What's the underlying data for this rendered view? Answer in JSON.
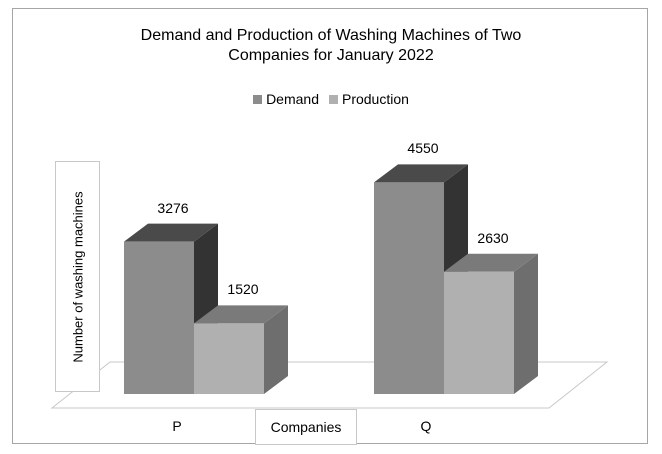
{
  "chart_data": {
    "type": "bar",
    "title_lines": [
      "Demand and Production of Washing Machines of Two",
      "Companies for January 2022"
    ],
    "categories": [
      "P",
      "Q"
    ],
    "series": [
      {
        "name": "Demand",
        "values": [
          3276,
          4550
        ]
      },
      {
        "name": "Production",
        "values": [
          1520,
          2630
        ]
      }
    ],
    "xlabel": "Companies",
    "ylabel": "Number of washing machines",
    "ylim": [
      0,
      5000
    ],
    "legend_position": "top-center",
    "grid": false,
    "colors": {
      "demand_front": "#8c8c8c",
      "demand_top": "#4a4a4a",
      "demand_side": "#333333",
      "production_front": "#b0b0b0",
      "production_top": "#7a7a7a",
      "production_side": "#6e6e6e",
      "floor": "#ffffff"
    }
  }
}
